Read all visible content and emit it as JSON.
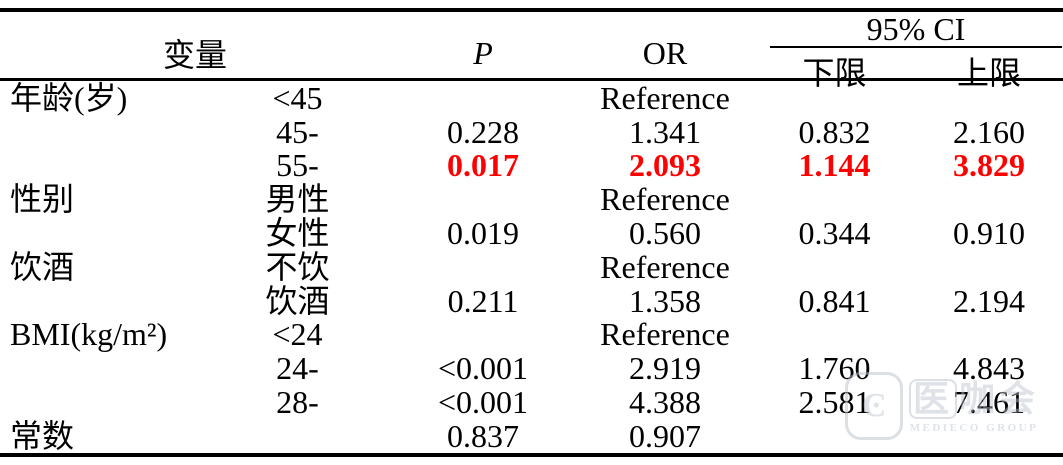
{
  "table": {
    "highlight_color": "#ff0000",
    "headers": {
      "variable": "变量",
      "p": "P",
      "or": "OR",
      "ci": "95% CI",
      "ci_lower": "下限",
      "ci_upper": "上限"
    },
    "rows": [
      {
        "variable": "年龄(岁)",
        "category": "<45",
        "p": "",
        "or": "Reference",
        "lower": "",
        "upper": "",
        "highlight": false
      },
      {
        "variable": "",
        "category": "45-",
        "p": "0.228",
        "or": "1.341",
        "lower": "0.832",
        "upper": "2.160",
        "highlight": false
      },
      {
        "variable": "",
        "category": "55-",
        "p": "0.017",
        "or": "2.093",
        "lower": "1.144",
        "upper": "3.829",
        "highlight": true
      },
      {
        "variable": "性别",
        "category": "男性",
        "p": "",
        "or": "Reference",
        "lower": "",
        "upper": "",
        "highlight": false
      },
      {
        "variable": "",
        "category": "女性",
        "p": "0.019",
        "or": "0.560",
        "lower": "0.344",
        "upper": "0.910",
        "highlight": false
      },
      {
        "variable": "饮酒",
        "category": "不饮",
        "p": "",
        "or": "Reference",
        "lower": "",
        "upper": "",
        "highlight": false
      },
      {
        "variable": "",
        "category": "饮酒",
        "p": "0.211",
        "or": "1.358",
        "lower": "0.841",
        "upper": "2.194",
        "highlight": false
      },
      {
        "variable": "BMI(kg/m²)",
        "category": "<24",
        "p": "",
        "or": "Reference",
        "lower": "",
        "upper": "",
        "highlight": false
      },
      {
        "variable": "",
        "category": "24-",
        "p": "<0.001",
        "or": "2.919",
        "lower": "1.760",
        "upper": "4.843",
        "highlight": false
      },
      {
        "variable": "",
        "category": "28-",
        "p": "<0.001",
        "or": "4.388",
        "lower": "2.581",
        "upper": "7.461",
        "highlight": false
      },
      {
        "variable": "常数",
        "category": "",
        "p": "0.837",
        "or": "0.907",
        "lower": "",
        "upper": "",
        "highlight": false
      }
    ]
  },
  "watermark": {
    "boxed_char": "医",
    "rest_chars": "咖会",
    "subtext": "MEDIECO GROUP",
    "logo": "medieco-logo"
  }
}
